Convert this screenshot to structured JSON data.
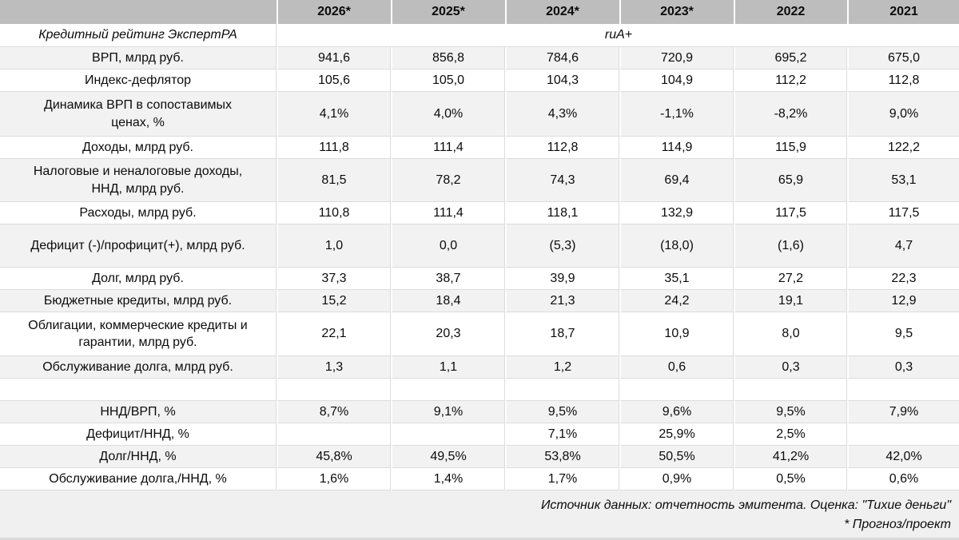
{
  "colors": {
    "header_bg": "#bdbdbd",
    "alt_row_bg": "#f2f2f2",
    "gridline": "#dcdcdc",
    "footer_bg": "#f0f0f0",
    "text": "#0b0b0b"
  },
  "chart_data": {
    "type": "table",
    "title": "",
    "columns": [
      "2026*",
      "2025*",
      "2024*",
      "2023*",
      "2022",
      "2021"
    ],
    "rating_row": {
      "label": "Кредитный рейтинг ЭкспертРА",
      "value": "ruA+"
    },
    "rows": [
      {
        "label": "ВРП, млрд руб.",
        "values": [
          "941,6",
          "856,8",
          "784,6",
          "720,9",
          "695,2",
          "675,0"
        ]
      },
      {
        "label": "Индекс-дефлятор",
        "values": [
          "105,6",
          "105,0",
          "104,3",
          "104,9",
          "112,2",
          "112,8"
        ]
      },
      {
        "label": "Динамика ВРП в сопоставимых ценах, %",
        "values": [
          "4,1%",
          "4,0%",
          "4,3%",
          "-1,1%",
          "-8,2%",
          "9,0%"
        ]
      },
      {
        "label": "Доходы, млрд руб.",
        "values": [
          "111,8",
          "111,4",
          "112,8",
          "114,9",
          "115,9",
          "122,2"
        ]
      },
      {
        "label": "Налоговые и неналоговые доходы, ННД, млрд руб.",
        "values": [
          "81,5",
          "78,2",
          "74,3",
          "69,4",
          "65,9",
          "53,1"
        ]
      },
      {
        "label": "Расходы, млрд руб.",
        "values": [
          "110,8",
          "111,4",
          "118,1",
          "132,9",
          "117,5",
          "117,5"
        ]
      },
      {
        "label": "Дефицит (-)/профицит(+), млрд руб.",
        "values": [
          "1,0",
          "0,0",
          "(5,3)",
          "(18,0)",
          "(1,6)",
          "4,7"
        ]
      },
      {
        "label": "Долг, млрд руб.",
        "values": [
          "37,3",
          "38,7",
          "39,9",
          "35,1",
          "27,2",
          "22,3"
        ]
      },
      {
        "label": "Бюджетные кредиты, млрд руб.",
        "values": [
          "15,2",
          "18,4",
          "21,3",
          "24,2",
          "19,1",
          "12,9"
        ]
      },
      {
        "label": "Облигации, коммерческие кредиты и гарантии, млрд руб.",
        "values": [
          "22,1",
          "20,3",
          "18,7",
          "10,9",
          "8,0",
          "9,5"
        ]
      },
      {
        "label": "Обслуживание долга, млрд руб.",
        "values": [
          "1,3",
          "1,1",
          "1,2",
          "0,6",
          "0,3",
          "0,3"
        ]
      },
      {
        "label": "",
        "values": [
          "",
          "",
          "",
          "",
          "",
          ""
        ]
      },
      {
        "label": "ННД/ВРП, %",
        "values": [
          "8,7%",
          "9,1%",
          "9,5%",
          "9,6%",
          "9,5%",
          "7,9%"
        ]
      },
      {
        "label": "Дефицит/ННД, %",
        "values": [
          "",
          "",
          "7,1%",
          "25,9%",
          "2,5%",
          ""
        ]
      },
      {
        "label": "Долг/ННД, %",
        "values": [
          "45,8%",
          "49,5%",
          "53,8%",
          "50,5%",
          "41,2%",
          "42,0%"
        ]
      },
      {
        "label": "Обслуживание долга,/ННД, %",
        "values": [
          "1,6%",
          "1,4%",
          "1,7%",
          "0,9%",
          "0,5%",
          "0,6%"
        ]
      }
    ],
    "footer_line1": "Источник данных: отчетность эмитента. Оценка: \"Тихие деньги\"",
    "footer_line2": "* Прогноз/проект"
  }
}
